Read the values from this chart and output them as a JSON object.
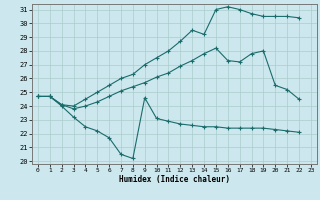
{
  "xlabel": "Humidex (Indice chaleur)",
  "bg_color": "#cce8ee",
  "grid_color": "#aacccc",
  "line_color": "#1a6b6b",
  "xlim": [
    -0.5,
    23.5
  ],
  "ylim": [
    19.8,
    31.4
  ],
  "yticks": [
    20,
    21,
    22,
    23,
    24,
    25,
    26,
    27,
    28,
    29,
    30,
    31
  ],
  "xticks": [
    0,
    1,
    2,
    3,
    4,
    5,
    6,
    7,
    8,
    9,
    10,
    11,
    12,
    13,
    14,
    15,
    16,
    17,
    18,
    19,
    20,
    21,
    22,
    23
  ],
  "line1_x": [
    0,
    1,
    2,
    3,
    4,
    5,
    6,
    7,
    8,
    9,
    10,
    11,
    12,
    13,
    14,
    15,
    16,
    17,
    18,
    19,
    20,
    21,
    22
  ],
  "line1_y": [
    24.7,
    24.7,
    24.1,
    24.0,
    24.5,
    25.0,
    25.5,
    26.0,
    26.3,
    27.0,
    27.5,
    28.0,
    28.7,
    29.5,
    29.2,
    31.0,
    31.2,
    31.0,
    30.7,
    30.5,
    30.5,
    30.5,
    30.4
  ],
  "line2_x": [
    0,
    1,
    2,
    3,
    4,
    5,
    6,
    7,
    8,
    9,
    10,
    11,
    12,
    13,
    14,
    15,
    16,
    17,
    18,
    19,
    20,
    21,
    22
  ],
  "line2_y": [
    24.7,
    24.7,
    24.1,
    23.8,
    24.0,
    24.3,
    24.7,
    25.1,
    25.4,
    25.7,
    26.1,
    26.4,
    26.9,
    27.3,
    27.8,
    28.2,
    27.3,
    27.2,
    27.8,
    28.0,
    25.5,
    25.2,
    24.5
  ],
  "line3_x": [
    0,
    1,
    2,
    3,
    4,
    5,
    6,
    7,
    8,
    9,
    10,
    11,
    12,
    13,
    14,
    15,
    16,
    17,
    18,
    19,
    20,
    21,
    22
  ],
  "line3_y": [
    24.7,
    24.7,
    24.0,
    23.2,
    22.5,
    22.2,
    21.7,
    20.5,
    20.2,
    24.6,
    23.1,
    22.9,
    22.7,
    22.6,
    22.5,
    22.5,
    22.4,
    22.4,
    22.4,
    22.4,
    22.3,
    22.2,
    22.1
  ]
}
